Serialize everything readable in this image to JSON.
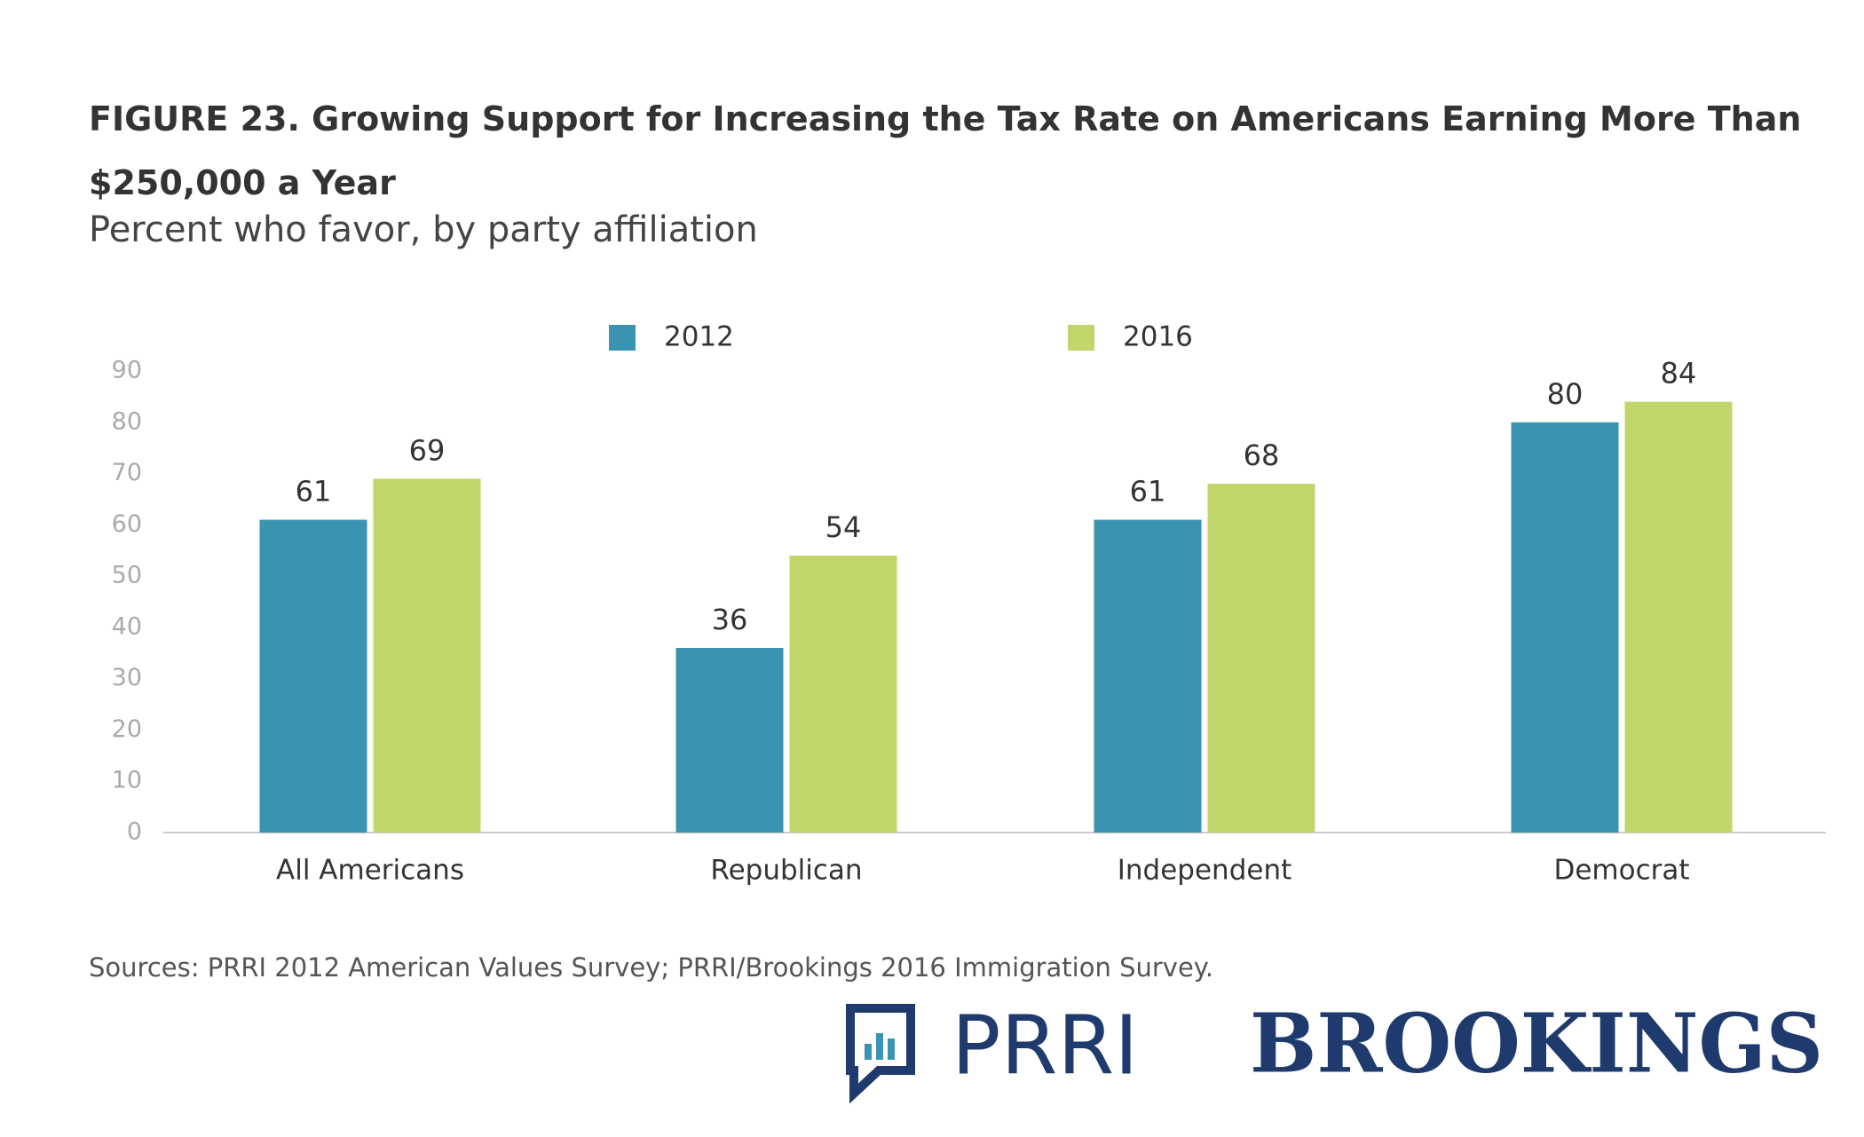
{
  "chart_data": {
    "type": "bar",
    "title": "FIGURE 23.  Growing Support for Increasing the Tax Rate on Americans Earning More Than $250,000 a Year",
    "subtitle": "Percent who favor, by party affiliation",
    "categories": [
      "All Americans",
      "Republican",
      "Independent",
      "Democrat"
    ],
    "series": [
      {
        "name": "2012",
        "color": "#3a93b0",
        "values": [
          61,
          36,
          61,
          80
        ]
      },
      {
        "name": "2016",
        "color": "#c0d56a",
        "values": [
          69,
          54,
          68,
          84
        ]
      }
    ],
    "ylim": [
      0,
      90
    ],
    "yticks": [
      0,
      10,
      20,
      30,
      40,
      50,
      60,
      70,
      80,
      90
    ],
    "source": "Sources: PRRI 2012 American Values Survey; PRRI/Brookings 2016 Immigration Survey.",
    "logos": [
      "PRRI",
      "BROOKINGS"
    ]
  }
}
